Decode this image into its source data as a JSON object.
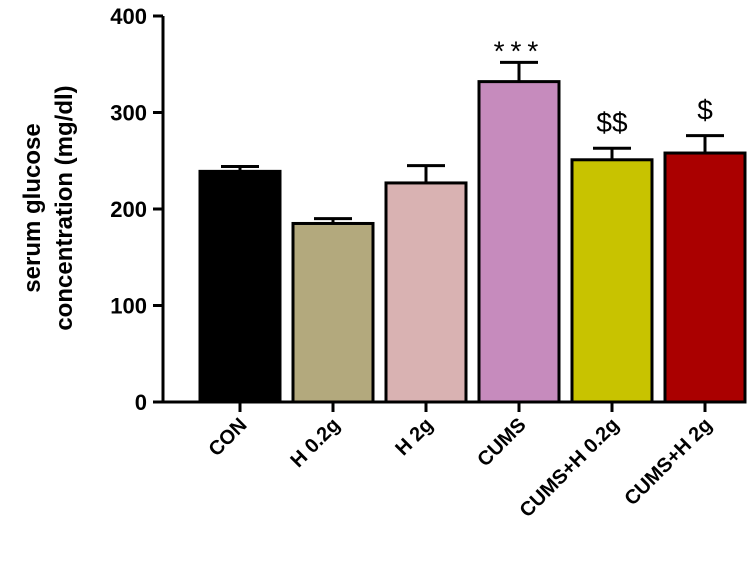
{
  "chart_data": {
    "type": "bar",
    "categories": [
      "CON",
      "H 0.2g",
      "H 2g",
      "CUMS",
      "CUMS+H 0.2g",
      "CUMS+H 2g"
    ],
    "values": [
      239,
      185,
      227,
      332,
      251,
      258
    ],
    "errors": [
      5,
      5,
      18,
      20,
      12,
      18
    ],
    "colors": [
      "#000000",
      "#b3a97d",
      "#d9b2b2",
      "#c68bbd",
      "#c8c300",
      "#aa0000"
    ],
    "annotations": [
      "",
      "",
      "",
      "***",
      "$$",
      "$"
    ],
    "ylabel": [
      "serum glucose",
      "concentration (mg/dl)"
    ],
    "ylim": [
      0,
      400
    ],
    "yticks": [
      0,
      100,
      200,
      300,
      400
    ],
    "grid": false
  }
}
